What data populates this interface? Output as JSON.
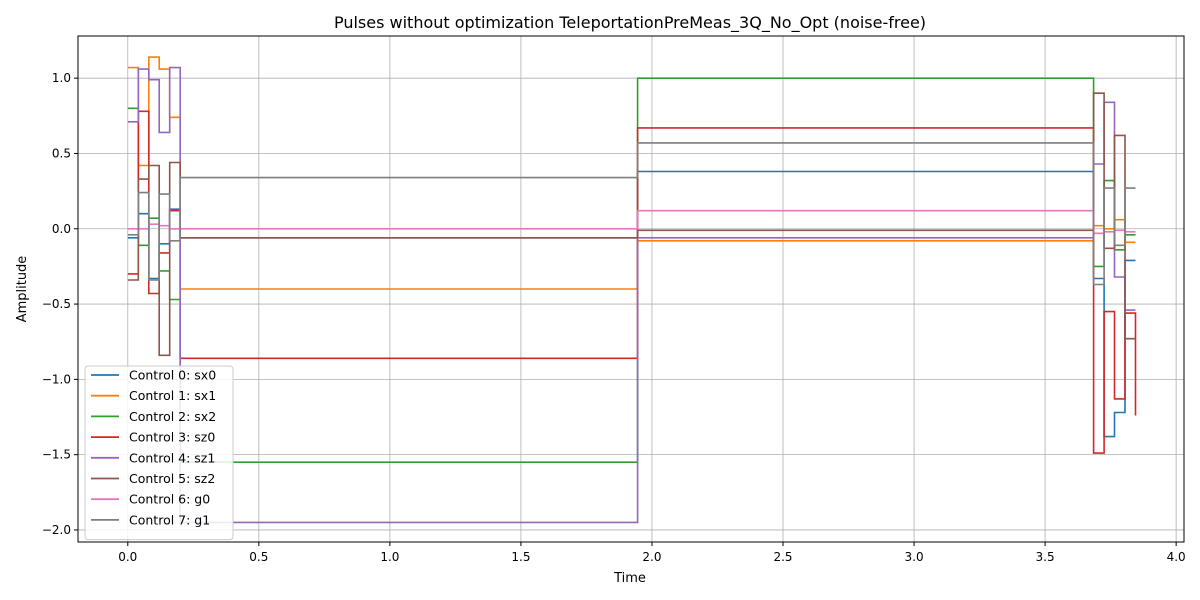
{
  "chart_data": {
    "type": "line",
    "step": "post",
    "title": "Pulses without optimization TeleportationPreMeas_3Q_No_Opt (noise-free)",
    "xlabel": "Time",
    "ylabel": "Amplitude",
    "xlim": [
      -0.19,
      4.03
    ],
    "ylim": [
      -2.08,
      1.28
    ],
    "xticks": [
      0.0,
      0.5,
      1.0,
      1.5,
      2.0,
      2.5,
      3.0,
      3.5,
      4.0
    ],
    "xtick_labels": [
      "0.0",
      "0.5",
      "1.0",
      "1.5",
      "2.0",
      "2.5",
      "3.0",
      "3.5",
      "4.0"
    ],
    "yticks": [
      -2.0,
      -1.5,
      -1.0,
      -0.5,
      0.0,
      0.5,
      1.0
    ],
    "ytick_labels": [
      "−2.0",
      "−1.5",
      "−1.0",
      "−0.5",
      "0.0",
      "0.5",
      "1.0"
    ],
    "grid": true,
    "legend_position": "lower-left",
    "x": [
      0.0,
      0.04,
      0.08,
      0.12,
      0.16,
      0.2,
      1.945,
      3.685,
      3.725,
      3.765,
      3.805,
      3.845
    ],
    "series": [
      {
        "name": "Control 0: sx0",
        "color": "#1f77b4",
        "values": [
          -0.06,
          0.1,
          -0.33,
          -0.1,
          0.13,
          -0.06,
          0.38,
          -0.33,
          -1.38,
          -1.22,
          -0.21,
          -0.21
        ]
      },
      {
        "name": "Control 1: sx1",
        "color": "#ff7f0e",
        "values": [
          1.07,
          0.42,
          1.14,
          1.06,
          0.74,
          -0.4,
          -0.08,
          0.02,
          0.0,
          0.06,
          -0.09,
          -0.09
        ]
      },
      {
        "name": "Control 2: sx2",
        "color": "#2ca02c",
        "values": [
          0.8,
          -0.11,
          0.07,
          -0.28,
          -0.47,
          -1.55,
          1.0,
          -0.25,
          0.32,
          -0.14,
          -0.04,
          -0.04
        ]
      },
      {
        "name": "Control 3: sz0",
        "color": "#d62728",
        "values": [
          -0.3,
          0.78,
          -0.43,
          -0.16,
          0.12,
          -0.86,
          0.67,
          -1.49,
          -0.55,
          -1.13,
          -0.56,
          -1.24
        ]
      },
      {
        "name": "Control 4: sz1",
        "color": "#9467bd",
        "values": [
          0.71,
          1.06,
          0.99,
          0.64,
          1.07,
          -1.95,
          -0.06,
          0.43,
          0.84,
          -0.32,
          -0.54,
          -0.54
        ]
      },
      {
        "name": "Control 5: sz2",
        "color": "#8c564b",
        "values": [
          -0.34,
          0.33,
          0.42,
          -0.84,
          0.44,
          -0.06,
          -0.01,
          0.9,
          -0.13,
          0.62,
          -0.73,
          -0.73
        ]
      },
      {
        "name": "Control 6: g0",
        "color": "#e377c2",
        "values": [
          0.0,
          0.0,
          0.03,
          0.02,
          0.0,
          0.0,
          0.12,
          -0.03,
          -0.02,
          -0.01,
          -0.02,
          -0.02
        ]
      },
      {
        "name": "Control 7: g1",
        "color": "#7f7f7f",
        "values": [
          -0.04,
          0.24,
          -0.34,
          0.23,
          -0.08,
          0.34,
          0.57,
          -0.37,
          0.27,
          -0.11,
          0.27,
          0.27
        ]
      }
    ]
  }
}
